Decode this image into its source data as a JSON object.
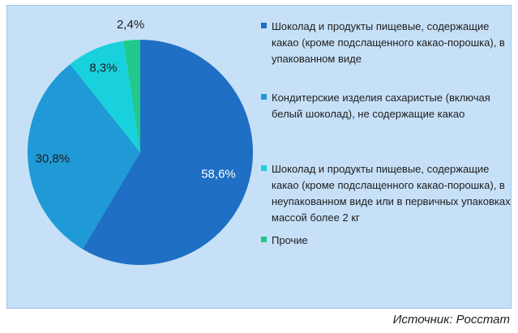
{
  "chart_data": {
    "type": "pie",
    "title": "",
    "labels": [
      "Шоколад и продукты пищевые, содержащие какао (кроме подслащенного какао-порошка), в упакованном виде",
      "Кондитерские изделия сахаристые (включая белый шоколад), не содержащие какао",
      "Шоколад и продукты пищевые, содержащие какао (кроме подслащенного какао-порошка), в неупакованном виде или в первичных упаковках массой более 2 кг",
      "Прочие"
    ],
    "values": [
      58.6,
      30.8,
      8.3,
      2.4
    ],
    "value_labels": [
      "58,6%",
      "30,8%",
      "8,3%",
      "2,4%"
    ],
    "colors": [
      "#1f6fc5",
      "#1f9ad6",
      "#19d1dc",
      "#20c98a"
    ],
    "legend_position": "right",
    "start_angle": "12 o'clock, clockwise"
  },
  "source": "Источник: Росстат"
}
